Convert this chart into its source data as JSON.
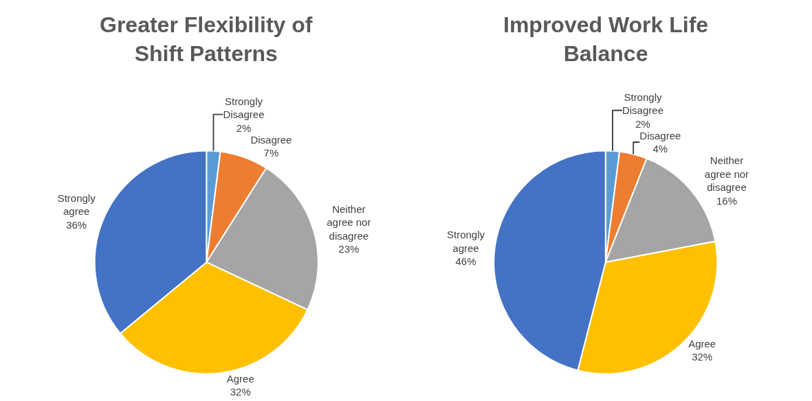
{
  "chart_data": [
    {
      "type": "pie",
      "title": "Greater Flexibility of Shift Patterns",
      "categories": [
        "Strongly Disagree",
        "Disagree",
        "Neither agree nor disagree",
        "Agree",
        "Strongly agree"
      ],
      "values": [
        2,
        7,
        23,
        32,
        36
      ],
      "colors": [
        "#5b9bd5",
        "#ed7d31",
        "#a5a5a5",
        "#ffc000",
        "#4472c4"
      ],
      "value_labels": [
        "2%",
        "7%",
        "23%",
        "32%",
        "36%"
      ]
    },
    {
      "type": "pie",
      "title": "Improved Work Life Balance",
      "categories": [
        "Strongly Disagree",
        "Disagree",
        "Neither agree nor disagree",
        "Agree",
        "Strongly agree"
      ],
      "values": [
        2,
        4,
        16,
        32,
        46
      ],
      "colors": [
        "#5b9bd5",
        "#ed7d31",
        "#a5a5a5",
        "#ffc000",
        "#4472c4"
      ],
      "value_labels": [
        "2%",
        "4%",
        "16%",
        "32%",
        "46%"
      ]
    }
  ]
}
